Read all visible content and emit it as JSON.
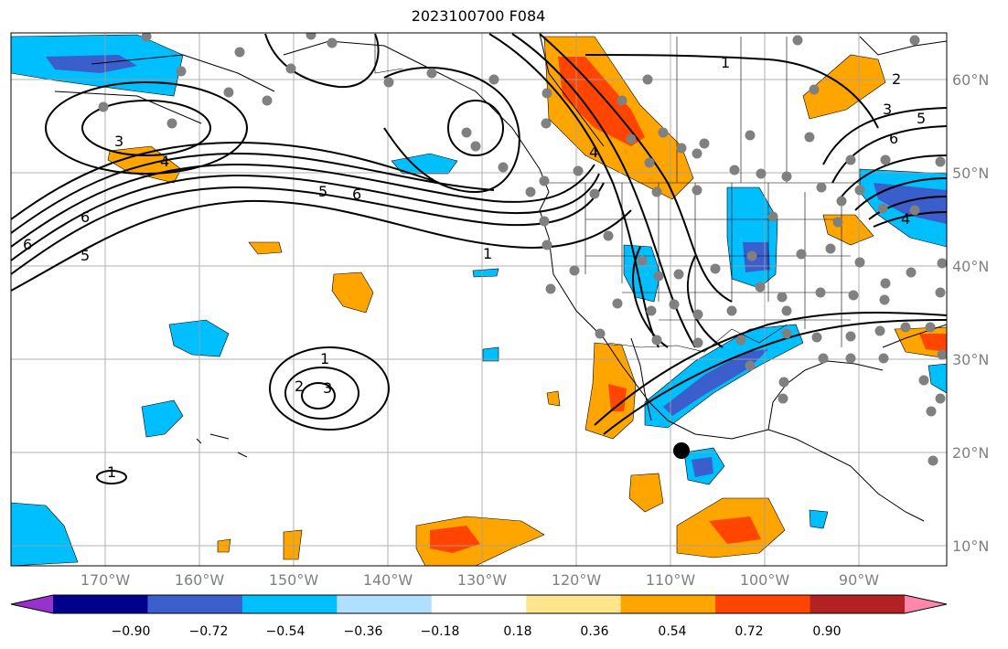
{
  "title": "2023100700 F084",
  "lon_ticks": [
    "170°W",
    "160°W",
    "150°W",
    "140°W",
    "130°W",
    "120°W",
    "110°W",
    "100°W",
    "90°W"
  ],
  "lat_ticks": [
    "60°N",
    "50°N",
    "40°N",
    "30°N",
    "20°N",
    "10°N"
  ],
  "colorbar": {
    "colors": [
      "#9932cc",
      "#00008b",
      "#3a5fcd",
      "#00bfff",
      "#b0e0ff",
      "#ffffff",
      "#ffe68c",
      "#ffa500",
      "#ff4500",
      "#b22222",
      "#ff88aa"
    ],
    "tick_labels": [
      "−0.90",
      "−0.72",
      "−0.54",
      "−0.36",
      "−0.18",
      "0.18",
      "0.36",
      "0.54",
      "0.72",
      "0.90"
    ]
  },
  "contour_labels": [
    "1",
    "2",
    "3",
    "4",
    "5",
    "6"
  ],
  "marker_color": "#808080"
}
